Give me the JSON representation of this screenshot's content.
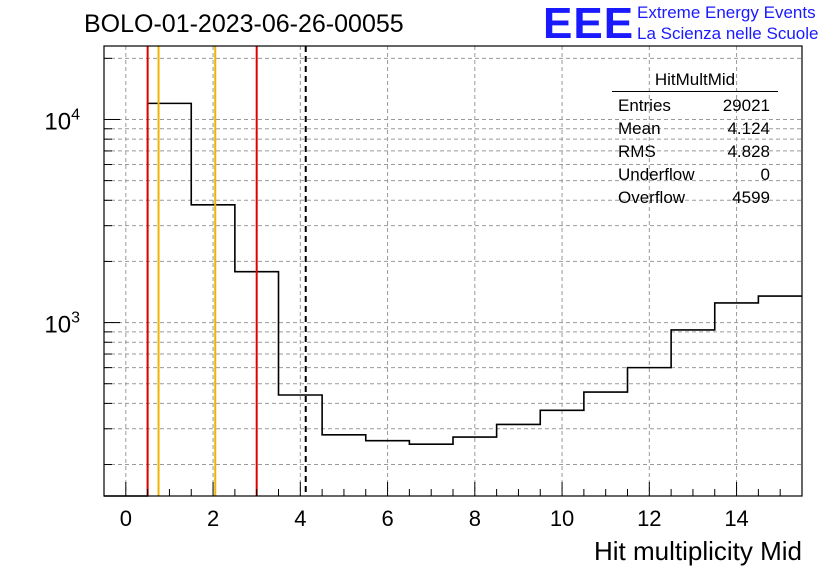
{
  "run_title": "BOLO-01-2023-06-26-00055",
  "logo": {
    "text": "EEE",
    "line1": "Extreme Energy Events",
    "line2": "La Scienza nelle Scuole"
  },
  "stats": {
    "title": "HitMultMid",
    "rows": [
      {
        "label": "Entries",
        "value": "29021"
      },
      {
        "label": "Mean",
        "value": "4.124"
      },
      {
        "label": "RMS",
        "value": "4.828"
      },
      {
        "label": "Underflow",
        "value": "0"
      },
      {
        "label": "Overflow",
        "value": "4599"
      }
    ]
  },
  "colors": {
    "red_line": "#e00000",
    "orange_line": "#f0b400",
    "logo_blue": "#1a1aff",
    "grid": "#9a9a9a"
  },
  "chart_data": {
    "type": "histogram",
    "xlabel": "Hit multiplicity Mid",
    "xlim": [
      -0.5,
      15.5
    ],
    "ylim": [
      140,
      23000
    ],
    "ylog": true,
    "grid": true,
    "x_ticks": [
      0,
      2,
      4,
      6,
      8,
      10,
      12,
      14
    ],
    "y_ticks": [
      {
        "value": 1000,
        "base": "10",
        "exp": "3"
      },
      {
        "value": 10000,
        "base": "10",
        "exp": "4"
      }
    ],
    "bin_width": 1,
    "bin_centers": [
      0,
      1,
      2,
      3,
      4,
      5,
      6,
      7,
      8,
      9,
      10,
      11,
      12,
      13,
      14,
      15
    ],
    "values": [
      0,
      12000,
      3800,
      1780,
      440,
      280,
      262,
      252,
      273,
      315,
      370,
      455,
      600,
      920,
      1250,
      1350
    ],
    "vertical_lines": [
      {
        "x": 0.5,
        "color": "red",
        "style": "solid"
      },
      {
        "x": 0.75,
        "color": "orange",
        "style": "solid"
      },
      {
        "x": 2.05,
        "color": "orange",
        "style": "solid"
      },
      {
        "x": 3.0,
        "color": "red",
        "style": "solid"
      },
      {
        "x": 4.124,
        "color": "black",
        "style": "dashed"
      }
    ]
  }
}
